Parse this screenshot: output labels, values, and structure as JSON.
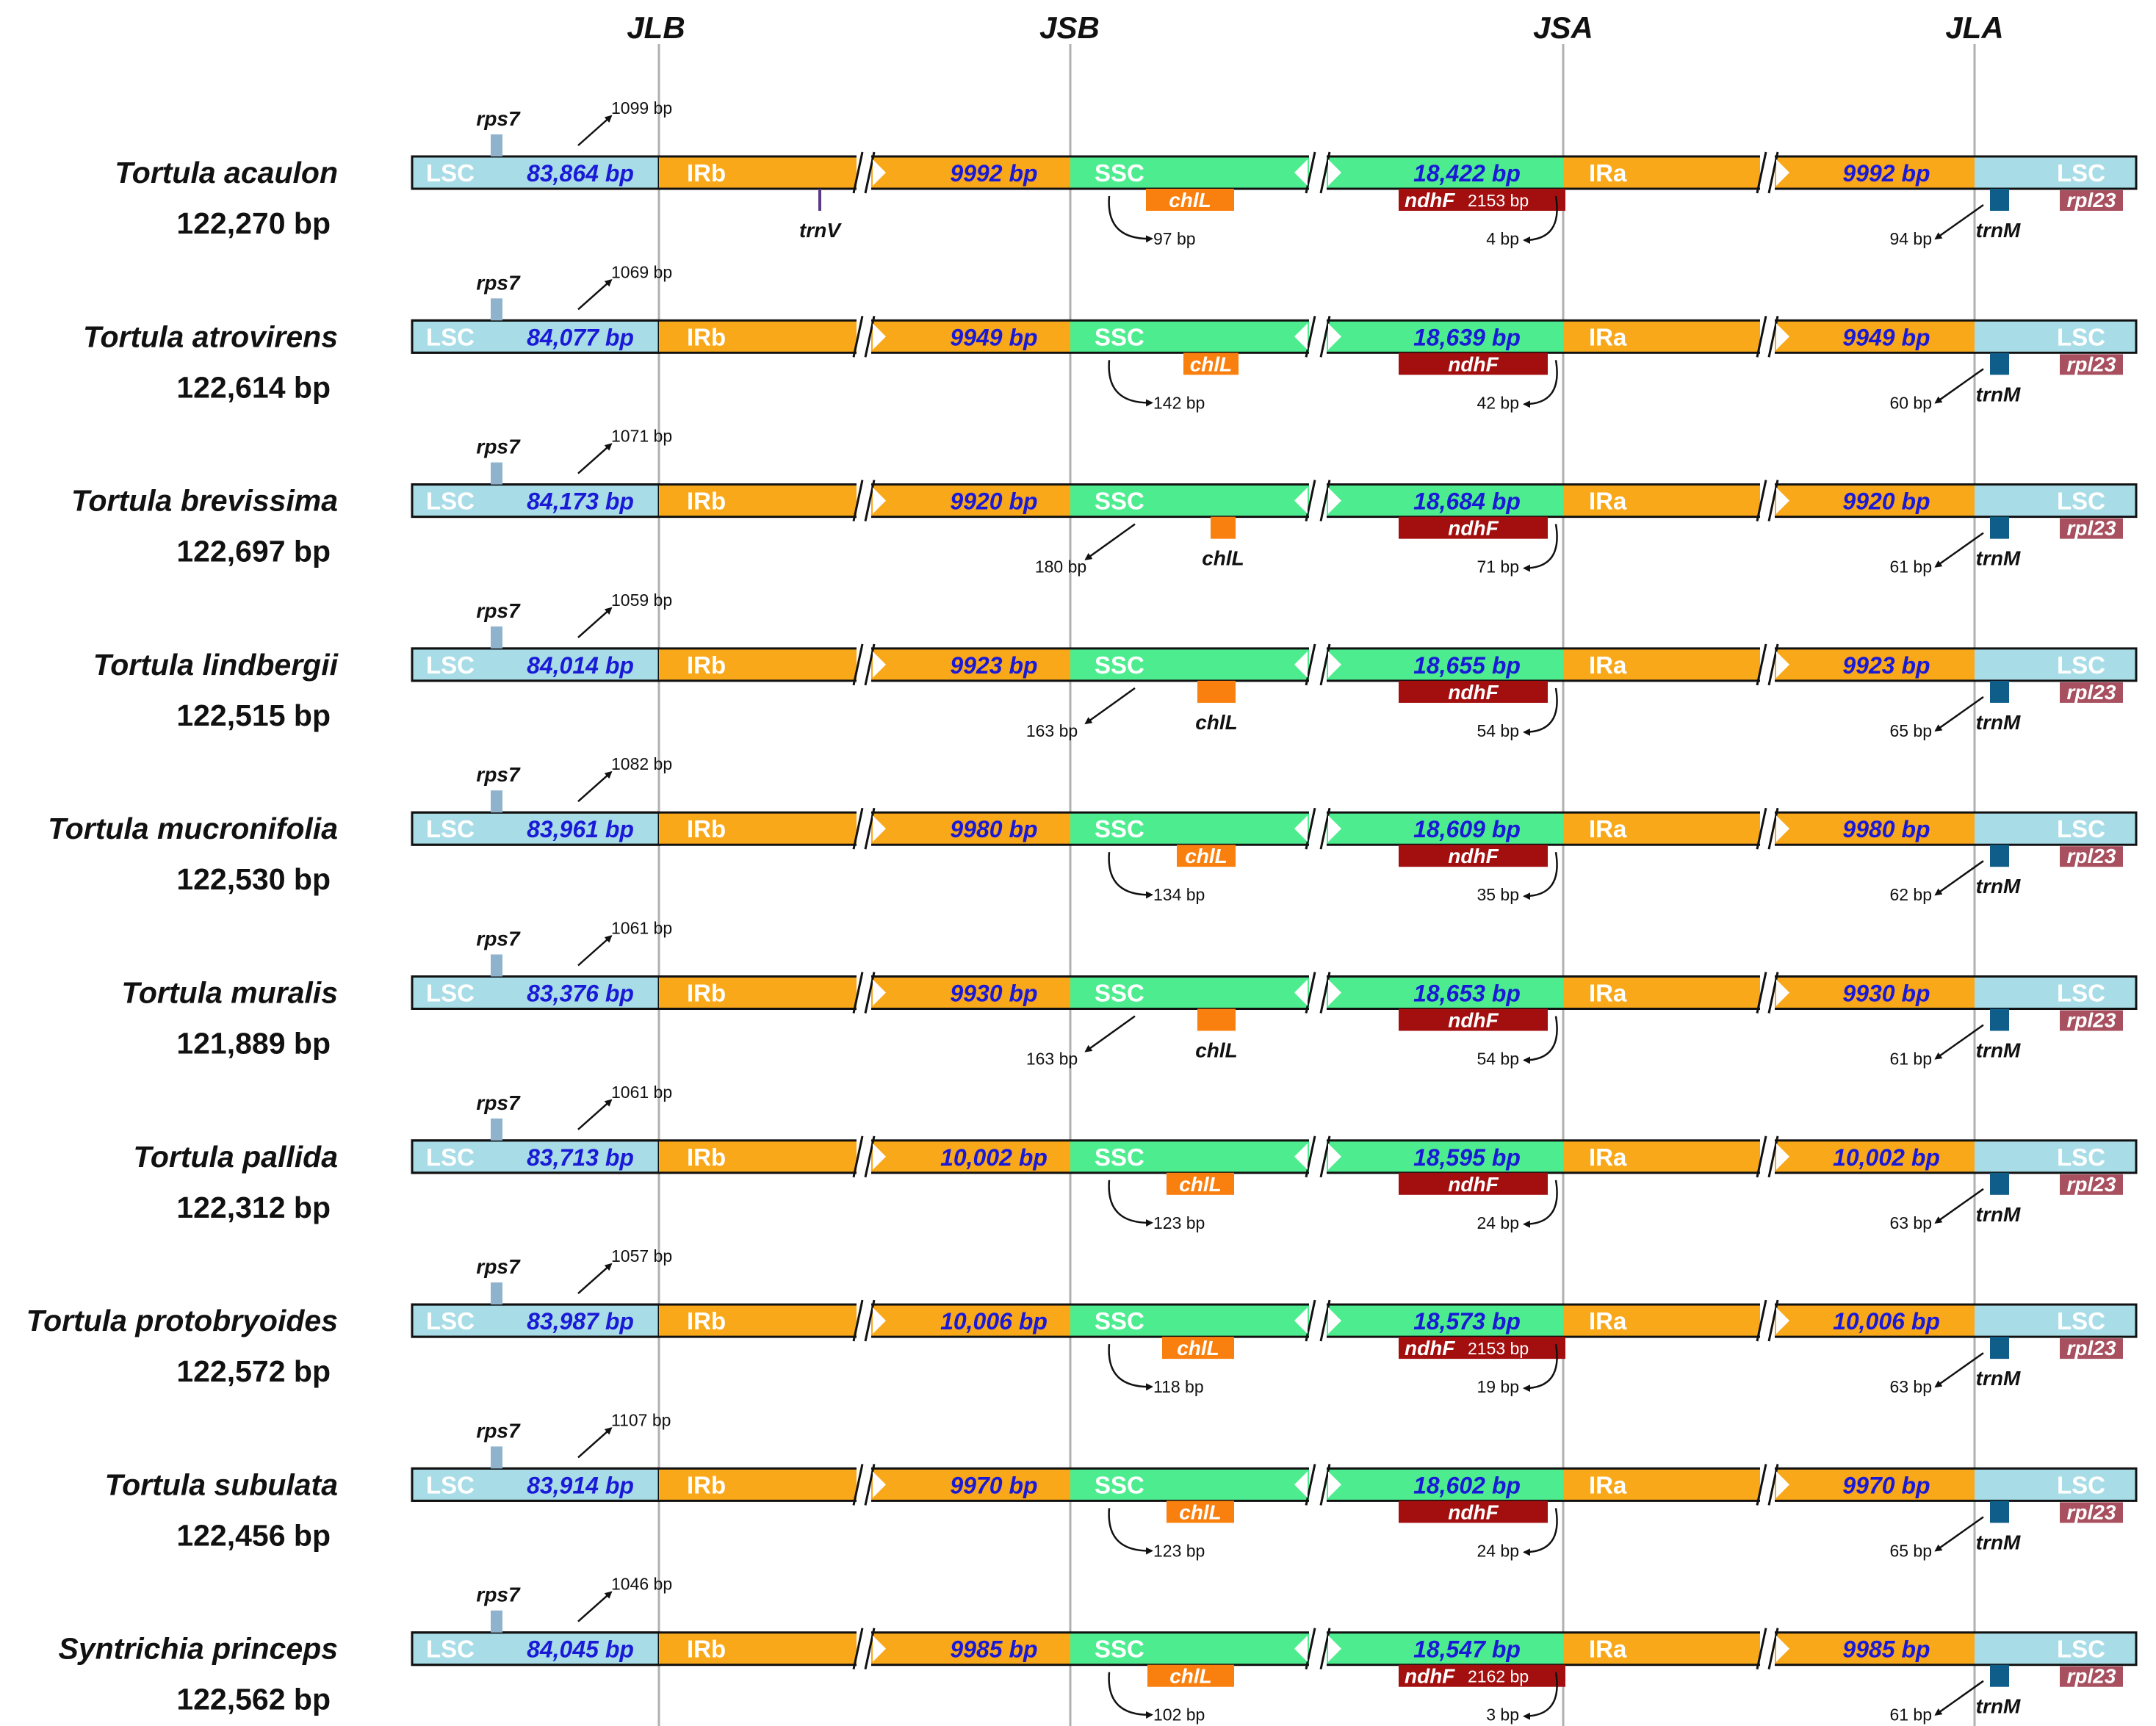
{
  "junctions": [
    "JLB",
    "JSB",
    "JSA",
    "JLA"
  ],
  "region_labels": {
    "lsc": "LSC",
    "irb": "IRb",
    "ssc": "SSC",
    "ira": "IRa"
  },
  "colors": {
    "lsc": "#a8dde8",
    "ir": "#f9a81a",
    "ssc": "#4ded8f",
    "rps7": "#8fb3cc",
    "chlL": "#f9800f",
    "ndhF": "#a30e0e",
    "trnM": "#0f5e8a",
    "rpl23": "#a8505f",
    "trnV": "#5a3a88",
    "length_text": "#1a1ad6",
    "junction_line": "#b0b0b0"
  },
  "species": [
    {
      "name": "Tortula acaulon",
      "size": "122,270 bp",
      "lsc": "83,864 bp",
      "ir": "9992 bp",
      "ssc": "18,422 bp",
      "rps7_gene": "rps7",
      "rps7_bp": "1099 bp",
      "trnV_gene": "trnV",
      "chlL_gene": "chlL",
      "chlL_bp": "97 bp",
      "ndhF_gene": "ndhF",
      "ndhF_len": "2153 bp",
      "ndhF_bp": "4 bp",
      "trnM_gene": "trnM",
      "trnM_bp": "94 bp",
      "rpl23_gene": "rpl23"
    },
    {
      "name": "Tortula atrovirens",
      "size": "122,614 bp",
      "lsc": "84,077 bp",
      "ir": "9949 bp",
      "ssc": "18,639 bp",
      "rps7_gene": "rps7",
      "rps7_bp": "1069 bp",
      "chlL_gene": "chlL",
      "chlL_bp": "142 bp",
      "ndhF_gene": "ndhF",
      "ndhF_bp": "42 bp",
      "trnM_gene": "trnM",
      "trnM_bp": "60 bp",
      "rpl23_gene": "rpl23"
    },
    {
      "name": "Tortula brevissima",
      "size": "122,697 bp",
      "lsc": "84,173 bp",
      "ir": "9920 bp",
      "ssc": "18,684 bp",
      "rps7_gene": "rps7",
      "rps7_bp": "1071 bp",
      "chlL_gene": "chlL",
      "chlL_bp": "180 bp",
      "ndhF_gene": "ndhF",
      "ndhF_bp": "71 bp",
      "trnM_gene": "trnM",
      "trnM_bp": "61 bp",
      "rpl23_gene": "rpl23"
    },
    {
      "name": "Tortula lindbergii",
      "size": "122,515 bp",
      "lsc": "84,014 bp",
      "ir": "9923 bp",
      "ssc": "18,655 bp",
      "rps7_gene": "rps7",
      "rps7_bp": "1059 bp",
      "chlL_gene": "chlL",
      "chlL_bp": "163 bp",
      "ndhF_gene": "ndhF",
      "ndhF_bp": "54 bp",
      "trnM_gene": "trnM",
      "trnM_bp": "65 bp",
      "rpl23_gene": "rpl23"
    },
    {
      "name": "Tortula mucronifolia",
      "size": "122,530 bp",
      "lsc": "83,961 bp",
      "ir": "9980 bp",
      "ssc": "18,609 bp",
      "rps7_gene": "rps7",
      "rps7_bp": "1082 bp",
      "chlL_gene": "chlL",
      "chlL_bp": "134 bp",
      "ndhF_gene": "ndhF",
      "ndhF_bp": "35 bp",
      "trnM_gene": "trnM",
      "trnM_bp": "62 bp",
      "rpl23_gene": "rpl23"
    },
    {
      "name": "Tortula muralis",
      "size": "121,889 bp",
      "lsc": "83,376 bp",
      "ir": "9930 bp",
      "ssc": "18,653 bp",
      "rps7_gene": "rps7",
      "rps7_bp": "1061 bp",
      "chlL_gene": "chlL",
      "chlL_bp": "163 bp",
      "ndhF_gene": "ndhF",
      "ndhF_bp": "54 bp",
      "trnM_gene": "trnM",
      "trnM_bp": "61 bp",
      "rpl23_gene": "rpl23"
    },
    {
      "name": "Tortula pallida",
      "size": "122,312 bp",
      "lsc": "83,713 bp",
      "ir": "10,002 bp",
      "ssc": "18,595 bp",
      "rps7_gene": "rps7",
      "rps7_bp": "1061 bp",
      "chlL_gene": "chlL",
      "chlL_bp": "123 bp",
      "ndhF_gene": "ndhF",
      "ndhF_bp": "24 bp",
      "trnM_gene": "trnM",
      "trnM_bp": "63 bp",
      "rpl23_gene": "rpl23"
    },
    {
      "name": "Tortula protobryoides",
      "size": "122,572 bp",
      "lsc": "83,987 bp",
      "ir": "10,006 bp",
      "ssc": "18,573 bp",
      "rps7_gene": "rps7",
      "rps7_bp": "1057 bp",
      "chlL_gene": "chlL",
      "chlL_bp": "118 bp",
      "ndhF_gene": "ndhF",
      "ndhF_len": "2153 bp",
      "ndhF_bp": "19 bp",
      "trnM_gene": "trnM",
      "trnM_bp": "63 bp",
      "rpl23_gene": "rpl23"
    },
    {
      "name": "Tortula subulata",
      "size": "122,456 bp",
      "lsc": "83,914 bp",
      "ir": "9970 bp",
      "ssc": "18,602 bp",
      "rps7_gene": "rps7",
      "rps7_bp": "1107 bp",
      "chlL_gene": "chlL",
      "chlL_bp": "123 bp",
      "ndhF_gene": "ndhF",
      "ndhF_bp": "24 bp",
      "trnM_gene": "trnM",
      "trnM_bp": "65 bp",
      "rpl23_gene": "rpl23"
    },
    {
      "name": "Syntrichia princeps",
      "size": "122,562 bp",
      "lsc": "84,045 bp",
      "ir": "9985 bp",
      "ssc": "18,547 bp",
      "rps7_gene": "rps7",
      "rps7_bp": "1046 bp",
      "chlL_gene": "chlL",
      "chlL_bp": "102 bp",
      "ndhF_gene": "ndhF",
      "ndhF_len": "2162 bp",
      "ndhF_bp": "3 bp",
      "trnM_gene": "trnM",
      "trnM_bp": "61 bp",
      "rpl23_gene": "rpl23"
    }
  ]
}
